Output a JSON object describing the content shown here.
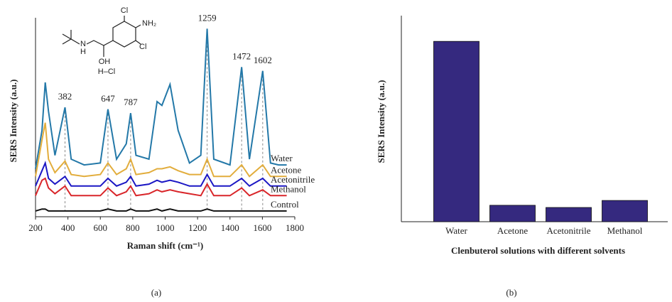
{
  "chart_data": [
    {
      "type": "line",
      "xlabel": "Raman shift (cm⁻¹)",
      "ylabel": "SERS Intensity (a.u.)",
      "panel_label": "(a)",
      "inset_labels": [
        "Cl",
        "NH₂",
        "Cl",
        "N",
        "H",
        "OH",
        "H–Cl"
      ],
      "x": [
        200,
        240,
        260,
        280,
        320,
        382,
        420,
        500,
        600,
        647,
        700,
        760,
        787,
        820,
        900,
        950,
        980,
        1030,
        1080,
        1150,
        1220,
        1259,
        1300,
        1400,
        1472,
        1520,
        1602,
        1650,
        1700,
        1750
      ],
      "series": [
        {
          "name": "Water",
          "color": "#2378a8",
          "values": [
            25,
            45,
            70,
            55,
            32,
            57,
            30,
            27,
            28,
            56,
            30,
            38,
            54,
            32,
            30,
            60,
            58,
            69,
            45,
            28,
            32,
            98,
            30,
            27,
            78,
            30,
            76,
            28,
            27,
            27
          ]
        },
        {
          "name": "Acetone",
          "color": "#e2ad3c",
          "values": [
            21,
            40,
            49,
            30,
            23,
            29,
            22,
            21,
            22,
            28,
            22,
            25,
            30,
            22,
            23,
            25,
            25,
            26,
            24,
            22,
            22,
            30,
            21,
            21,
            27,
            21,
            27,
            21,
            21,
            21
          ]
        },
        {
          "name": "Acetonitrile",
          "color": "#1b17c4",
          "values": [
            16,
            24,
            28,
            20,
            17,
            21,
            16,
            16,
            16,
            20,
            16,
            18,
            21,
            16,
            17,
            19,
            18,
            19,
            18,
            16,
            16,
            22,
            16,
            16,
            20,
            16,
            20,
            16,
            16,
            16
          ]
        },
        {
          "name": "Methanol",
          "color": "#d9262a",
          "values": [
            11,
            19,
            20,
            15,
            12,
            16,
            11,
            11,
            11,
            15,
            11,
            13,
            16,
            11,
            12,
            14,
            13,
            14,
            13,
            12,
            11,
            17,
            11,
            11,
            15,
            11,
            14,
            11,
            11,
            11
          ]
        },
        {
          "name": "Control",
          "color": "#111111",
          "values": [
            3,
            4,
            4,
            3,
            3,
            3,
            3,
            3,
            3,
            4,
            3,
            3,
            4,
            3,
            3,
            4,
            3,
            4,
            3,
            3,
            3,
            4,
            3,
            3,
            3,
            3,
            3,
            3,
            3,
            3
          ]
        }
      ],
      "peak_labels": [
        382,
        647,
        787,
        1259,
        1472,
        1602
      ],
      "xlim": [
        200,
        1800
      ],
      "xticks": [
        200,
        400,
        600,
        800,
        1000,
        1200,
        1400,
        1600,
        1800
      ],
      "ylim": [
        0,
        100
      ]
    },
    {
      "type": "bar",
      "xlabel": "Clenbuterol solutions with different solvents",
      "ylabel": "SERS Intensity (a.u.)",
      "panel_label": "(b)",
      "categories": [
        "Water",
        "Acetone",
        "Acetonitrile",
        "Methanol"
      ],
      "values": [
        90,
        8.2,
        7.1,
        10.6
      ],
      "color": "#35297f",
      "ylim": [
        0,
        100
      ]
    }
  ]
}
